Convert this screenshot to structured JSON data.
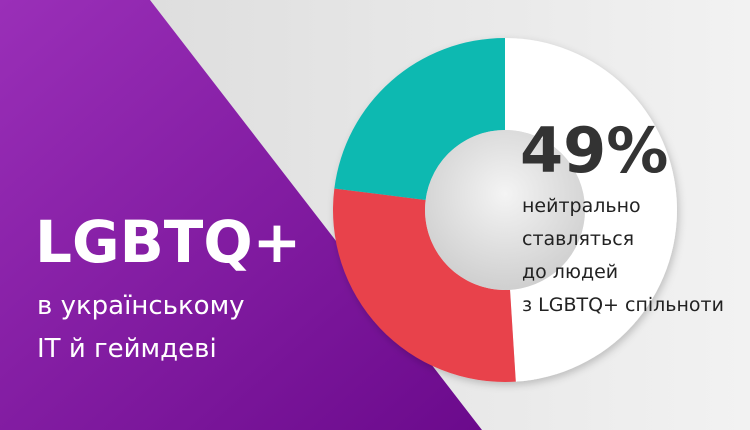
{
  "chart_data": {
    "type": "donut",
    "title": "LGBTQ+",
    "subtitle_lines": [
      "в українському",
      "IT й геймдеві"
    ],
    "values": [
      49,
      28,
      23
    ],
    "value_labels": [
      "49%",
      null,
      null
    ],
    "colors": [
      "#ffffff",
      "#e8434b",
      "#0fb9b1"
    ],
    "annotation_lines": [
      "нейтрально",
      "ставляться",
      "до людей",
      "з LGBTQ+ спільноти"
    ]
  }
}
